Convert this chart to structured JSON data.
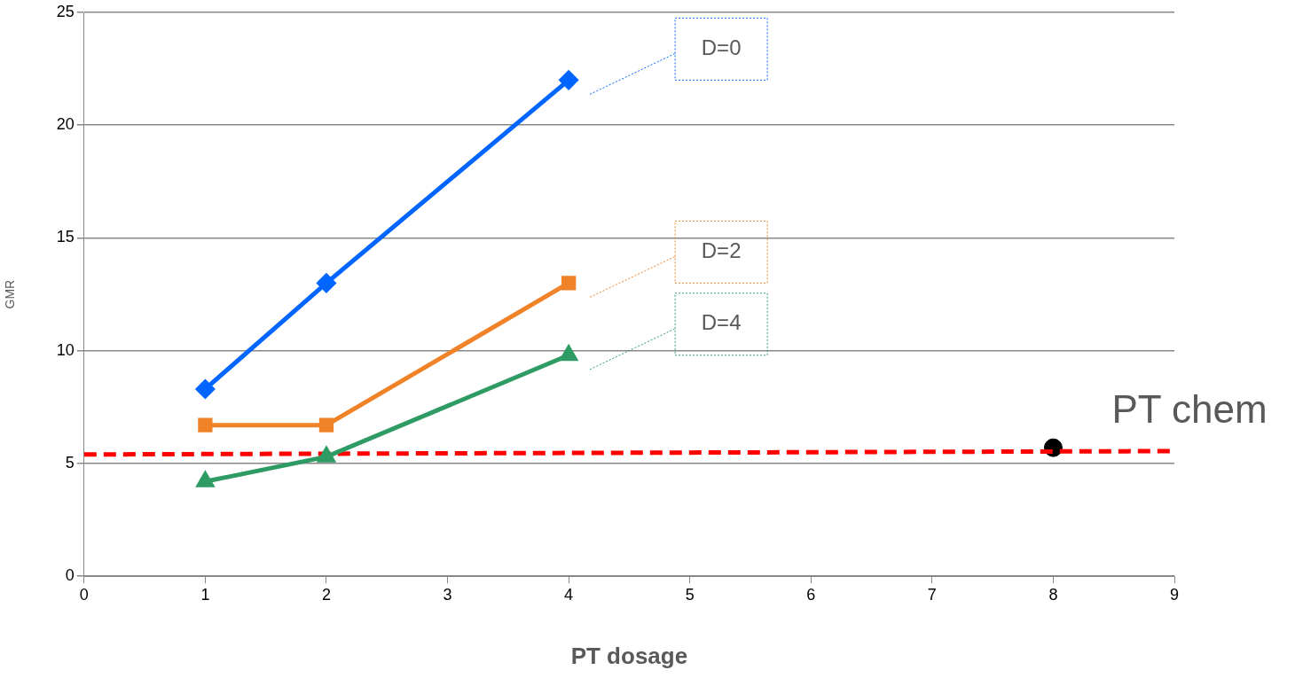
{
  "chart_data": {
    "type": "line",
    "xlabel": "PT dosage",
    "ylabel": "GMR",
    "xlim": [
      0,
      9
    ],
    "xticks": [
      0,
      1,
      2,
      3,
      4,
      5,
      6,
      7,
      8,
      9
    ],
    "ylim": [
      0,
      25
    ],
    "yticks": [
      0,
      5,
      10,
      15,
      20,
      25
    ],
    "grid": "y",
    "legend": false,
    "series": [
      {
        "name": "D=0",
        "color": "#0066ff",
        "x": [
          1,
          2,
          4
        ],
        "values": [
          8.3,
          13,
          22
        ],
        "marker": "diamond",
        "line_style": "solid"
      },
      {
        "name": "D=2",
        "color": "#f08228",
        "x": [
          1,
          2,
          4
        ],
        "values": [
          6.7,
          6.7,
          13
        ],
        "marker": "square",
        "line_style": "solid"
      },
      {
        "name": "D=4",
        "color": "#2e9b64",
        "x": [
          1,
          2,
          4
        ],
        "values": [
          4.2,
          5.3,
          9.8
        ],
        "marker": "triangle",
        "line_style": "solid"
      },
      {
        "type": "line",
        "color": "#ff0000",
        "x": [
          0,
          9
        ],
        "values": [
          5.4,
          5.55
        ],
        "marker": "none",
        "line_style": "dashed"
      },
      {
        "type": "scatter",
        "name": "PT chem",
        "color": "#000000",
        "x": [
          8
        ],
        "values": [
          5.7
        ],
        "marker": "circle"
      }
    ]
  }
}
